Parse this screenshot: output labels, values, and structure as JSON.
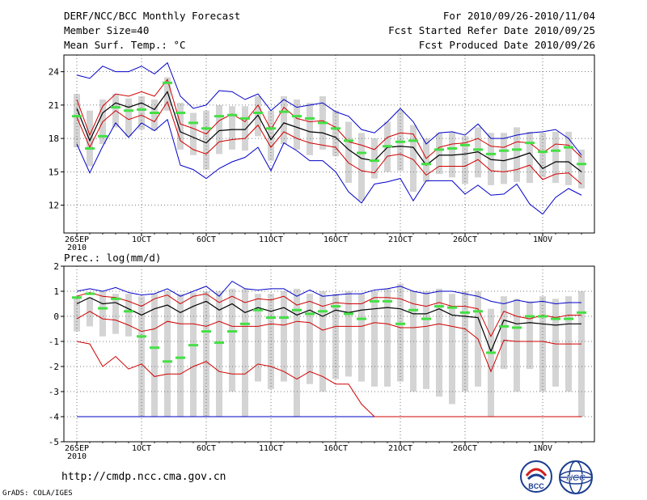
{
  "header": {
    "title": "DERF/NCC/BCC Monthly Forecast",
    "member_size": "Member Size=40",
    "variable": "Mean Surf. Temp.: ",
    "variable_unit": "°C",
    "forecast_period": "For 2010/09/26-2010/11/04",
    "fcst_started": "Fcst Started Refer Date 2010/09/25",
    "fcst_produced": "Fcst Produced Date 2010/09/26"
  },
  "footer": {
    "url": "http://cmdp.ncc.cma.gov.cn",
    "grads": "GrADS: COLA/IGES",
    "bcc_label": "BCC",
    "ncc_label": "NCC"
  },
  "colors": {
    "max_line": "#0000c8",
    "percentile_line": "#d00000",
    "mean_line": "#000000",
    "box": "#d4d4d4",
    "dash": "#44e044"
  },
  "chart_data": [
    {
      "type": "line",
      "title": "Mean Surf. Temp.: °C",
      "x_tick_labels": [
        "26SEP",
        "1OCT",
        "6OCT",
        "11OCT",
        "16OCT",
        "21OCT",
        "26OCT",
        "1NOV"
      ],
      "x_year_label": "2010",
      "x_tick_days": [
        0,
        5,
        10,
        15,
        20,
        25,
        30,
        36
      ],
      "xlim": [
        -1,
        40
      ],
      "ylim": [
        9.5,
        25.5
      ],
      "y_ticks": [
        12,
        15,
        18,
        21,
        24
      ],
      "grid": true,
      "series": {
        "max": [
          23.7,
          23.4,
          24.5,
          24.0,
          24.0,
          24.5,
          23.8,
          24.8,
          21.8,
          20.7,
          21.0,
          22.3,
          22.2,
          21.5,
          22.0,
          20.5,
          21.5,
          20.8,
          21.0,
          21.2,
          20.4,
          20.0,
          18.8,
          18.5,
          19.5,
          20.7,
          19.5,
          17.5,
          18.5,
          18.6,
          18.3,
          19.3,
          18.0,
          18.0,
          18.3,
          18.5,
          18.6,
          18.8,
          18.0,
          16.5
        ],
        "p90": [
          21.5,
          18.3,
          20.9,
          22.0,
          21.8,
          22.2,
          21.8,
          23.3,
          19.3,
          18.9,
          18.4,
          19.6,
          20.2,
          19.5,
          21.0,
          18.8,
          20.8,
          19.8,
          19.5,
          19.6,
          19.0,
          17.7,
          17.4,
          17.0,
          18.1,
          18.5,
          18.4,
          16.2,
          17.2,
          17.5,
          17.6,
          18.0,
          17.3,
          17.2,
          17.7,
          17.6,
          16.7,
          17.5,
          17.4,
          16.3
        ],
        "mean": [
          20.7,
          17.8,
          20.3,
          21.2,
          20.8,
          21.2,
          20.6,
          22.2,
          18.6,
          18.1,
          17.6,
          18.7,
          18.8,
          18.8,
          20.1,
          17.9,
          19.4,
          19.0,
          18.6,
          18.5,
          18.1,
          17.0,
          16.2,
          16.0,
          17.2,
          17.3,
          17.2,
          15.6,
          16.5,
          16.5,
          16.6,
          16.8,
          16.1,
          16.0,
          16.3,
          16.7,
          15.3,
          15.9,
          15.9,
          15.0
        ],
        "p10": [
          19.9,
          17.2,
          19.5,
          20.5,
          19.7,
          20.1,
          19.5,
          21.3,
          17.8,
          17.0,
          16.6,
          17.7,
          17.9,
          18.0,
          19.2,
          17.2,
          18.6,
          18.0,
          17.6,
          17.4,
          17.2,
          15.8,
          15.1,
          14.9,
          16.4,
          16.6,
          16.1,
          14.7,
          15.5,
          15.5,
          15.5,
          16.1,
          15.1,
          15.0,
          15.2,
          15.6,
          14.3,
          14.8,
          14.9,
          13.9
        ],
        "min": [
          17.5,
          14.9,
          17.3,
          19.4,
          18.1,
          19.4,
          18.7,
          19.7,
          15.6,
          15.2,
          14.4,
          15.3,
          15.9,
          16.3,
          17.2,
          15.1,
          17.6,
          16.9,
          16.0,
          16.0,
          15.0,
          13.2,
          12.2,
          13.9,
          14.1,
          14.4,
          12.4,
          14.2,
          14.2,
          14.2,
          13.0,
          13.8,
          12.9,
          13.0,
          13.9,
          12.1,
          11.2,
          12.7,
          13.5,
          12.9
        ],
        "box_top": [
          22.0,
          20.5,
          21.5,
          22.0,
          21.6,
          21.8,
          21.5,
          23.5,
          21.2,
          20.3,
          20.5,
          21.0,
          20.9,
          20.9,
          21.8,
          20.5,
          21.8,
          21.5,
          21.2,
          21.8,
          20.5,
          19.5,
          18.5,
          18.0,
          19.5,
          20.5,
          19.2,
          18.0,
          18.5,
          18.6,
          18.2,
          19.0,
          18.5,
          18.5,
          19.0,
          18.6,
          18.5,
          18.6,
          18.6,
          17.0
        ],
        "box_bot": [
          17.2,
          15.5,
          17.5,
          19.0,
          18.2,
          18.8,
          18.7,
          20.5,
          17.0,
          16.5,
          15.2,
          16.6,
          17.0,
          16.9,
          18.2,
          16.0,
          17.5,
          17.0,
          16.5,
          17.0,
          16.4,
          14.0,
          12.4,
          14.4,
          15.0,
          15.1,
          13.2,
          14.1,
          14.8,
          14.5,
          13.9,
          14.5,
          13.8,
          13.9,
          14.1,
          14.0,
          14.5,
          14.0,
          13.8,
          13.5
        ],
        "member_dash": [
          20.0,
          17.1,
          18.2,
          20.8,
          20.5,
          20.6,
          20.3,
          23.0,
          20.3,
          19.4,
          18.9,
          20.0,
          20.1,
          19.8,
          20.3,
          18.9,
          20.4,
          20.0,
          19.8,
          19.4,
          18.9,
          17.8,
          16.7,
          16.0,
          17.3,
          17.7,
          17.8,
          15.7,
          17.0,
          17.1,
          17.4,
          17.0,
          16.6,
          16.9,
          17.0,
          17.6,
          16.8,
          16.9,
          17.2,
          15.7
        ]
      }
    },
    {
      "type": "line",
      "title": "Prec.: log(mm/d)",
      "x_tick_labels": [
        "26SEP",
        "1OCT",
        "6OCT",
        "11OCT",
        "16OCT",
        "21OCT",
        "26OCT",
        "1NOV"
      ],
      "x_year_label": "2010",
      "x_tick_days": [
        0,
        5,
        10,
        15,
        20,
        25,
        30,
        36
      ],
      "xlim": [
        -1,
        40
      ],
      "ylim": [
        -5,
        2
      ],
      "y_ticks": [
        -5,
        -4,
        -3,
        -2,
        -1,
        0,
        1,
        2
      ],
      "grid": true,
      "series": {
        "max": [
          1.0,
          1.1,
          1.0,
          1.15,
          0.95,
          0.85,
          0.9,
          1.1,
          0.8,
          1.0,
          1.2,
          0.8,
          1.4,
          1.1,
          1.05,
          1.1,
          1.1,
          0.8,
          1.05,
          0.8,
          0.85,
          0.9,
          0.9,
          1.05,
          1.1,
          1.2,
          1.0,
          0.9,
          1.0,
          1.0,
          0.9,
          0.8,
          0.6,
          0.5,
          0.65,
          0.55,
          0.6,
          0.5,
          0.55,
          0.55
        ],
        "p90": [
          0.8,
          0.95,
          0.8,
          0.75,
          0.6,
          0.4,
          0.7,
          0.85,
          0.5,
          0.8,
          0.9,
          0.55,
          0.8,
          0.55,
          0.7,
          0.65,
          0.8,
          0.45,
          0.6,
          0.4,
          0.55,
          0.5,
          0.5,
          0.75,
          0.75,
          0.7,
          0.5,
          0.4,
          0.55,
          0.4,
          0.4,
          0.3,
          -0.8,
          0.2,
          0.0,
          -0.1,
          0.05,
          -0.05,
          0.05,
          0.05
        ],
        "mean": [
          0.5,
          0.75,
          0.5,
          0.55,
          0.3,
          0.05,
          0.3,
          0.45,
          0.15,
          0.4,
          0.6,
          0.25,
          0.5,
          0.15,
          0.35,
          0.2,
          0.35,
          0.05,
          0.25,
          0.0,
          0.25,
          0.15,
          0.25,
          0.3,
          0.35,
          0.3,
          0.1,
          0.1,
          0.3,
          0.05,
          0.0,
          -0.05,
          -1.4,
          -0.15,
          -0.3,
          -0.25,
          -0.3,
          -0.35,
          -0.3,
          -0.3
        ],
        "p10": [
          -0.1,
          0.2,
          -0.1,
          -0.15,
          -0.35,
          -0.6,
          -0.5,
          -0.2,
          -0.3,
          -0.3,
          -0.4,
          -0.2,
          -0.4,
          -0.4,
          -0.4,
          -0.3,
          -0.35,
          -0.2,
          -0.25,
          -0.55,
          -0.4,
          -0.4,
          -0.4,
          -0.25,
          -0.3,
          -0.45,
          -0.45,
          -0.4,
          -0.3,
          -0.4,
          -0.5,
          -0.9,
          -2.2,
          -0.95,
          -1.0,
          -1.0,
          -1.0,
          -1.1,
          -1.1,
          -1.1
        ],
        "min": [
          -1.0,
          -1.1,
          -2.0,
          -1.6,
          -2.1,
          -1.9,
          -2.4,
          -2.3,
          -2.3,
          -2.0,
          -1.8,
          -2.2,
          -2.3,
          -2.3,
          -1.9,
          -2.0,
          -2.2,
          -2.5,
          -2.2,
          -2.4,
          -2.7,
          -2.7,
          -3.5,
          -4.0,
          -4.0,
          -4.0,
          -4.0,
          -4.0,
          -4.0,
          -4.0,
          -4.0,
          -4.0,
          -4.0,
          -4.0,
          -4.0,
          -4.0,
          -4.0,
          -4.0,
          -4.0,
          -4.0
        ],
        "box_top": [
          0.75,
          0.75,
          1.0,
          0.9,
          0.9,
          0.8,
          0.9,
          1.0,
          0.9,
          0.95,
          1.0,
          1.0,
          1.1,
          1.1,
          0.9,
          0.9,
          1.0,
          1.1,
          0.9,
          1.0,
          0.9,
          1.0,
          0.9,
          1.0,
          1.1,
          1.3,
          1.0,
          1.0,
          1.1,
          0.9,
          1.0,
          1.0,
          0.3,
          0.8,
          0.7,
          0.6,
          0.8,
          0.7,
          0.8,
          1.0
        ],
        "box_bot": [
          -0.6,
          -0.4,
          -0.8,
          -0.7,
          -0.8,
          -4.0,
          -4.0,
          -4.0,
          -4.0,
          -4.0,
          -4.0,
          -4.0,
          -3.0,
          -4.0,
          -2.6,
          -2.9,
          -2.6,
          -4.0,
          -2.7,
          -3.0,
          -2.5,
          -2.4,
          -2.6,
          -2.8,
          -2.8,
          -2.6,
          -3.0,
          -2.9,
          -3.2,
          -3.5,
          -3.0,
          -2.8,
          -4.0,
          -2.1,
          -3.0,
          -2.1,
          -3.0,
          -2.8,
          -3.0,
          -4.0
        ],
        "member_dash": [
          0.75,
          0.9,
          0.32,
          0.7,
          0.2,
          -0.8,
          -1.25,
          -1.8,
          -1.65,
          -1.15,
          -0.6,
          -1.05,
          -0.6,
          -0.3,
          0.25,
          -0.05,
          -0.05,
          0.25,
          0.1,
          0.2,
          0.4,
          0.1,
          -0.1,
          0.6,
          0.6,
          -0.3,
          0.25,
          -0.1,
          0.4,
          0.35,
          0.15,
          0.2,
          -1.45,
          -0.4,
          -0.45,
          0.0,
          0.0,
          -0.1,
          -0.1,
          0.15
        ],
        "floor_line": -4
      }
    }
  ]
}
